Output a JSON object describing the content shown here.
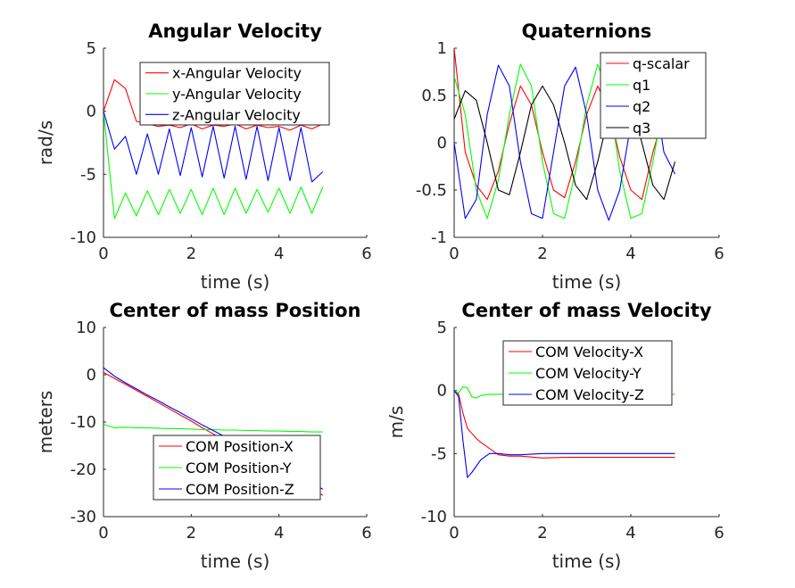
{
  "chart_data": [
    {
      "type": "line",
      "title": "Angular Velocity",
      "xlabel": "time (s)",
      "ylabel": "rad/s",
      "xlim": [
        0,
        6
      ],
      "ylim": [
        -10,
        5
      ],
      "xticks": [
        "0",
        "2",
        "4",
        "6"
      ],
      "yticks": [
        "5",
        "0",
        "-5",
        "-10"
      ],
      "legend_position": "top-right",
      "x": [
        0,
        0.25,
        0.5,
        0.75,
        1.0,
        1.25,
        1.5,
        1.75,
        2.0,
        2.25,
        2.5,
        2.75,
        3.0,
        3.25,
        3.5,
        3.75,
        4.0,
        4.25,
        4.5,
        4.75,
        5.0
      ],
      "series": [
        {
          "name": "x-Angular Velocity",
          "color": "#ff0000",
          "values": [
            0,
            2.5,
            1.8,
            -0.8,
            -1.0,
            -1.2,
            -1.1,
            -1.3,
            -1.0,
            -1.4,
            -1.1,
            -1.2,
            -1.0,
            -1.4,
            -1.1,
            -1.3,
            -1.2,
            -1.5,
            -1.1,
            -1.4,
            -1.0
          ]
        },
        {
          "name": "y-Angular Velocity",
          "color": "#00ff00",
          "values": [
            0,
            -8.5,
            -6.5,
            -8.3,
            -6.3,
            -8.2,
            -6.2,
            -8.1,
            -6.2,
            -8.2,
            -6.1,
            -8.2,
            -6.1,
            -8.1,
            -6.2,
            -8.0,
            -6.1,
            -8.1,
            -6.0,
            -8.1,
            -6.0
          ]
        },
        {
          "name": "z-Angular Velocity",
          "color": "#0000ff",
          "values": [
            0,
            -3.0,
            -2.0,
            -5.0,
            -1.8,
            -5.0,
            -1.4,
            -5.1,
            -1.3,
            -5.2,
            -1.2,
            -5.3,
            -1.2,
            -5.4,
            -1.2,
            -5.5,
            -1.3,
            -5.5,
            -1.3,
            -5.6,
            -4.8
          ]
        }
      ]
    },
    {
      "type": "line",
      "title": "Quaternions",
      "xlabel": "time (s)",
      "ylabel": "",
      "xlim": [
        0,
        6
      ],
      "ylim": [
        -1,
        1
      ],
      "xticks": [
        "0",
        "2",
        "4",
        "6"
      ],
      "yticks": [
        "1",
        "0.5",
        "0",
        "-0.5",
        "-1"
      ],
      "legend_position": "top-right",
      "x": [
        0,
        0.25,
        0.5,
        0.75,
        1.0,
        1.25,
        1.5,
        1.75,
        2.0,
        2.25,
        2.5,
        2.75,
        3.0,
        3.25,
        3.5,
        3.75,
        4.0,
        4.25,
        4.5,
        4.75,
        5.0
      ],
      "series": [
        {
          "name": "q-scalar",
          "color": "#ff0000",
          "values": [
            1.0,
            -0.1,
            -0.45,
            -0.6,
            -0.3,
            0.2,
            0.6,
            0.4,
            -0.1,
            -0.5,
            -0.58,
            -0.2,
            0.3,
            0.6,
            0.35,
            -0.15,
            -0.5,
            -0.6,
            -0.1,
            0.3,
            0.55
          ]
        },
        {
          "name": "q1",
          "color": "#00ff00",
          "values": [
            0.7,
            0.3,
            -0.5,
            -0.8,
            -0.4,
            0.3,
            0.83,
            0.6,
            -0.2,
            -0.75,
            -0.8,
            -0.3,
            0.4,
            0.83,
            0.5,
            -0.3,
            -0.8,
            -0.75,
            -0.2,
            0.45,
            0.82
          ]
        },
        {
          "name": "q2",
          "color": "#0000ff",
          "values": [
            0.0,
            -0.8,
            -0.6,
            0.3,
            0.82,
            0.6,
            -0.2,
            -0.75,
            -0.8,
            -0.1,
            0.6,
            0.8,
            0.3,
            -0.5,
            -0.82,
            -0.5,
            0.2,
            0.8,
            0.65,
            -0.1,
            -0.33
          ]
        },
        {
          "name": "q3",
          "color": "#000000",
          "values": [
            0.25,
            0.55,
            0.45,
            0.0,
            -0.5,
            -0.55,
            -0.1,
            0.4,
            0.6,
            0.4,
            0.0,
            -0.45,
            -0.6,
            -0.2,
            0.3,
            0.6,
            0.45,
            0.0,
            -0.45,
            -0.6,
            -0.2
          ]
        }
      ]
    },
    {
      "type": "line",
      "title": "Center of mass Position",
      "xlabel": "time (s)",
      "ylabel": "meters",
      "xlim": [
        0,
        6
      ],
      "ylim": [
        -30,
        10
      ],
      "xticks": [
        "0",
        "2",
        "4",
        "6"
      ],
      "yticks": [
        "10",
        "0",
        "-10",
        "-20",
        "-30"
      ],
      "legend_position": "bottom-right",
      "x": [
        0,
        0.25,
        0.5,
        0.75,
        1.0,
        1.25,
        1.5,
        1.75,
        2.0,
        2.25,
        2.5,
        2.75,
        3.0,
        3.25,
        3.5,
        3.75,
        4.0,
        4.25,
        4.5,
        4.75,
        5.0
      ],
      "series": [
        {
          "name": "COM Position-X",
          "color": "#ff0000",
          "values": [
            0.5,
            -0.8,
            -2.0,
            -3.3,
            -4.6,
            -5.9,
            -7.2,
            -8.5,
            -9.8,
            -11.2,
            -12.5,
            -13.8,
            -15.1,
            -16.4,
            -17.7,
            -19.0,
            -20.3,
            -21.6,
            -22.9,
            -24.2,
            -25.5
          ]
        },
        {
          "name": "COM Position-Y",
          "color": "#00ff00",
          "values": [
            -10.5,
            -11.2,
            -11.1,
            -11.2,
            -11.2,
            -11.3,
            -11.4,
            -11.4,
            -11.5,
            -11.6,
            -11.6,
            -11.7,
            -11.7,
            -11.8,
            -11.8,
            -11.9,
            -11.9,
            -12.0,
            -12.0,
            -12.1,
            -12.1
          ]
        },
        {
          "name": "COM Position-Z",
          "color": "#0000ff",
          "values": [
            1.5,
            -0.3,
            -1.7,
            -3.0,
            -4.3,
            -5.5,
            -6.8,
            -8.0,
            -9.3,
            -10.6,
            -11.8,
            -13.0,
            -14.3,
            -15.5,
            -16.8,
            -18.0,
            -19.2,
            -20.5,
            -21.7,
            -23.0,
            -24.2
          ]
        }
      ]
    },
    {
      "type": "line",
      "title": "Center of mass Velocity",
      "xlabel": "time (s)",
      "ylabel": "m/s",
      "xlim": [
        0,
        6
      ],
      "ylim": [
        -10,
        5
      ],
      "xticks": [
        "0",
        "2",
        "4",
        "6"
      ],
      "yticks": [
        "5",
        "0",
        "-5",
        "-10"
      ],
      "legend_position": "top-right",
      "x": [
        0,
        0.1,
        0.2,
        0.3,
        0.4,
        0.5,
        0.6,
        0.8,
        1.0,
        1.25,
        1.5,
        2.0,
        2.5,
        3.0,
        3.5,
        4.0,
        4.5,
        5.0
      ],
      "series": [
        {
          "name": "COM Velocity-X",
          "color": "#ff0000",
          "values": [
            0.0,
            -0.3,
            -1.8,
            -3.0,
            -3.4,
            -3.8,
            -4.1,
            -4.6,
            -5.1,
            -5.2,
            -5.2,
            -5.35,
            -5.3,
            -5.3,
            -5.3,
            -5.3,
            -5.3,
            -5.3
          ]
        },
        {
          "name": "COM Velocity-Y",
          "color": "#00ff00",
          "values": [
            0.0,
            -0.2,
            0.3,
            0.2,
            -0.5,
            -0.6,
            -0.4,
            -0.3,
            -0.3,
            -0.3,
            -0.3,
            -0.3,
            -0.3,
            -0.3,
            -0.3,
            -0.3,
            -0.3,
            -0.3
          ]
        },
        {
          "name": "COM Velocity-Z",
          "color": "#0000ff",
          "values": [
            0.0,
            -0.5,
            -4.0,
            -6.9,
            -6.5,
            -6.0,
            -5.5,
            -5.0,
            -5.0,
            -5.1,
            -5.1,
            -5.0,
            -5.0,
            -5.0,
            -5.0,
            -5.0,
            -5.0,
            -5.0
          ]
        }
      ]
    }
  ]
}
